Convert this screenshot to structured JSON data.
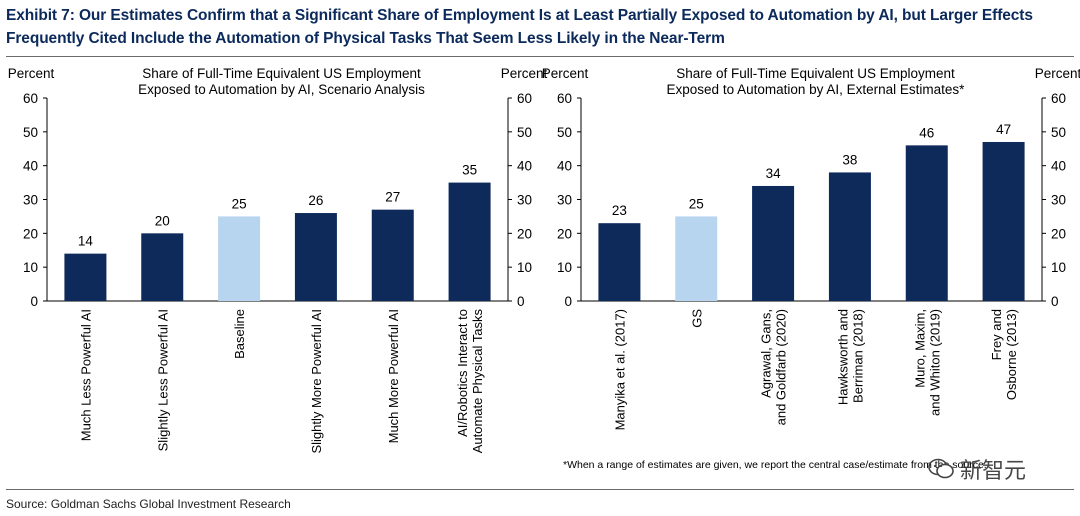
{
  "title": "Exhibit 7: Our Estimates Confirm that a Significant Share of Employment Is at Least Partially Exposed to Automation by AI, but Larger Effects Frequently Cited Include the Automation of Physical Tasks That Seem Less Likely in the Near-Term",
  "source": "Source: Goldman Sachs Global Investment Research",
  "watermark_text": "新智元",
  "colors": {
    "dark_bar": "#0d2a5a",
    "light_bar": "#b8d5ef",
    "axis": "#000000"
  },
  "chart_data": [
    {
      "type": "bar",
      "title": "Share of Full-Time Equivalent US Employment Exposed to Automation by AI, Scenario Analysis",
      "title_lines": [
        "Share of Full-Time Equivalent US Employment",
        "Exposed to Automation by AI, Scenario Analysis"
      ],
      "ylabel_left": "Percent",
      "ylabel_right": "Percent",
      "ylim": [
        0,
        60
      ],
      "yticks": [
        0,
        10,
        20,
        30,
        40,
        50,
        60
      ],
      "categories": [
        [
          "Much Less Powerful AI"
        ],
        [
          "Slightly Less Powerful AI"
        ],
        [
          "Baseline"
        ],
        [
          "Slightly More Powerful AI"
        ],
        [
          "Much More Powerful AI"
        ],
        [
          "AI/Robotics Interact to",
          "Automate Physical Tasks"
        ]
      ],
      "values": [
        14,
        20,
        25,
        26,
        27,
        35
      ],
      "labels": [
        "14",
        "20",
        "25",
        "26",
        "27",
        "35"
      ],
      "highlight": [
        false,
        false,
        true,
        false,
        false,
        false
      ],
      "footnote": ""
    },
    {
      "type": "bar",
      "title": "Share of Full-Time Equivalent US Employment Exposed to Automation by AI, External Estimates*",
      "title_lines": [
        "Share of Full-Time Equivalent US Employment",
        "Exposed to Automation by AI, External Estimates*"
      ],
      "ylabel_left": "Percent",
      "ylabel_right": "Percent",
      "ylim": [
        0,
        60
      ],
      "yticks": [
        0,
        10,
        20,
        30,
        40,
        50,
        60
      ],
      "categories": [
        [
          "Manyika et al. (2017)"
        ],
        [
          "GS"
        ],
        [
          "Agrawal, Gans,",
          "and Goldfarb (2020)"
        ],
        [
          "Hawksworth and",
          "Berriman (2018)"
        ],
        [
          "Muro, Maxim,",
          "and Whiton (2019)"
        ],
        [
          "Frey and",
          "Osborne (2013)"
        ]
      ],
      "values": [
        23,
        25,
        34,
        38,
        46,
        47
      ],
      "labels": [
        "23",
        "25",
        "34",
        "38",
        "46",
        "47"
      ],
      "highlight": [
        false,
        true,
        false,
        false,
        false,
        false
      ],
      "footnote": "*When a range of estimates are given, we report the central case/estimate from the source."
    }
  ]
}
